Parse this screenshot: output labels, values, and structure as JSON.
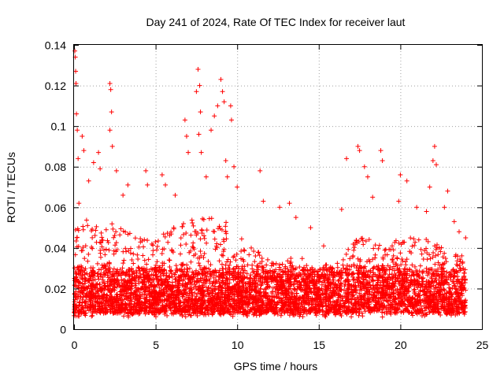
{
  "chart_data": {
    "type": "scatter",
    "title": "Day 241 of 2024, Rate Of TEC Index for receiver laut",
    "xlabel": "GPS time / hours",
    "ylabel": "ROTI / TECUs",
    "xlim": [
      0,
      25
    ],
    "ylim": [
      0,
      0.14
    ],
    "xticks": [
      0,
      5,
      10,
      15,
      20,
      25
    ],
    "yticks": [
      0,
      0.02,
      0.04,
      0.06,
      0.08,
      0.1,
      0.12,
      0.14
    ],
    "xtick_labels": [
      "0",
      "5",
      "10",
      "15",
      "20",
      "25"
    ],
    "ytick_labels": [
      "0",
      "0.02",
      "0.04",
      "0.06",
      "0.08",
      "0.1",
      "0.12",
      "0.14"
    ],
    "grid": true,
    "marker": "+",
    "series": [
      {
        "name": "ROTI",
        "color": "#ff0000",
        "points": [
          [
            0.05,
            0.137
          ],
          [
            0.08,
            0.134
          ],
          [
            0.1,
            0.127
          ],
          [
            0.12,
            0.121
          ],
          [
            0.15,
            0.106
          ],
          [
            0.2,
            0.098
          ],
          [
            0.25,
            0.084
          ],
          [
            0.3,
            0.062
          ],
          [
            0.5,
            0.095
          ],
          [
            0.6,
            0.088
          ],
          [
            0.9,
            0.073
          ],
          [
            1.2,
            0.082
          ],
          [
            1.5,
            0.087
          ],
          [
            1.6,
            0.079
          ],
          [
            2.2,
            0.121
          ],
          [
            2.25,
            0.118
          ],
          [
            2.3,
            0.107
          ],
          [
            2.2,
            0.098
          ],
          [
            2.35,
            0.09
          ],
          [
            2.6,
            0.078
          ],
          [
            3.0,
            0.066
          ],
          [
            3.3,
            0.071
          ],
          [
            4.4,
            0.078
          ],
          [
            4.5,
            0.071
          ],
          [
            5.4,
            0.076
          ],
          [
            5.6,
            0.071
          ],
          [
            6.2,
            0.066
          ],
          [
            6.8,
            0.103
          ],
          [
            6.9,
            0.095
          ],
          [
            7.0,
            0.087
          ],
          [
            7.5,
            0.117
          ],
          [
            7.6,
            0.128
          ],
          [
            7.7,
            0.12
          ],
          [
            7.75,
            0.107
          ],
          [
            7.65,
            0.096
          ],
          [
            7.8,
            0.087
          ],
          [
            8.1,
            0.075
          ],
          [
            8.4,
            0.098
          ],
          [
            8.6,
            0.105
          ],
          [
            8.8,
            0.11
          ],
          [
            9.0,
            0.123
          ],
          [
            9.1,
            0.117
          ],
          [
            9.2,
            0.112
          ],
          [
            9.3,
            0.083
          ],
          [
            9.4,
            0.075
          ],
          [
            9.6,
            0.11
          ],
          [
            9.65,
            0.103
          ],
          [
            9.8,
            0.08
          ],
          [
            10.0,
            0.07
          ],
          [
            11.4,
            0.078
          ],
          [
            11.6,
            0.063
          ],
          [
            12.6,
            0.06
          ],
          [
            13.2,
            0.062
          ],
          [
            13.6,
            0.055
          ],
          [
            14.5,
            0.05
          ],
          [
            15.3,
            0.041
          ],
          [
            16.4,
            0.059
          ],
          [
            16.7,
            0.084
          ],
          [
            17.4,
            0.09
          ],
          [
            17.5,
            0.088
          ],
          [
            17.8,
            0.08
          ],
          [
            18.0,
            0.075
          ],
          [
            18.3,
            0.065
          ],
          [
            18.8,
            0.088
          ],
          [
            18.9,
            0.083
          ],
          [
            19.9,
            0.063
          ],
          [
            20.0,
            0.076
          ],
          [
            20.4,
            0.073
          ],
          [
            21.0,
            0.06
          ],
          [
            21.6,
            0.058
          ],
          [
            21.8,
            0.07
          ],
          [
            22.0,
            0.083
          ],
          [
            22.1,
            0.09
          ],
          [
            22.2,
            0.081
          ],
          [
            22.7,
            0.06
          ],
          [
            22.9,
            0.068
          ],
          [
            23.3,
            0.053
          ],
          [
            23.6,
            0.048
          ],
          [
            24.0,
            0.045
          ]
        ],
        "density_envelope": {
          "hours": [
            0,
            1,
            2,
            3,
            4,
            5,
            6,
            7,
            8,
            9,
            10,
            11,
            12,
            13,
            14,
            15,
            16,
            17,
            18,
            19,
            20,
            21,
            22,
            23,
            24
          ],
          "typical_upper": [
            0.05,
            0.055,
            0.055,
            0.05,
            0.045,
            0.045,
            0.05,
            0.055,
            0.055,
            0.055,
            0.05,
            0.04,
            0.035,
            0.035,
            0.035,
            0.03,
            0.035,
            0.045,
            0.045,
            0.04,
            0.045,
            0.045,
            0.045,
            0.04,
            0.035
          ],
          "core_range": [
            0.008,
            0.03
          ]
        }
      }
    ]
  }
}
